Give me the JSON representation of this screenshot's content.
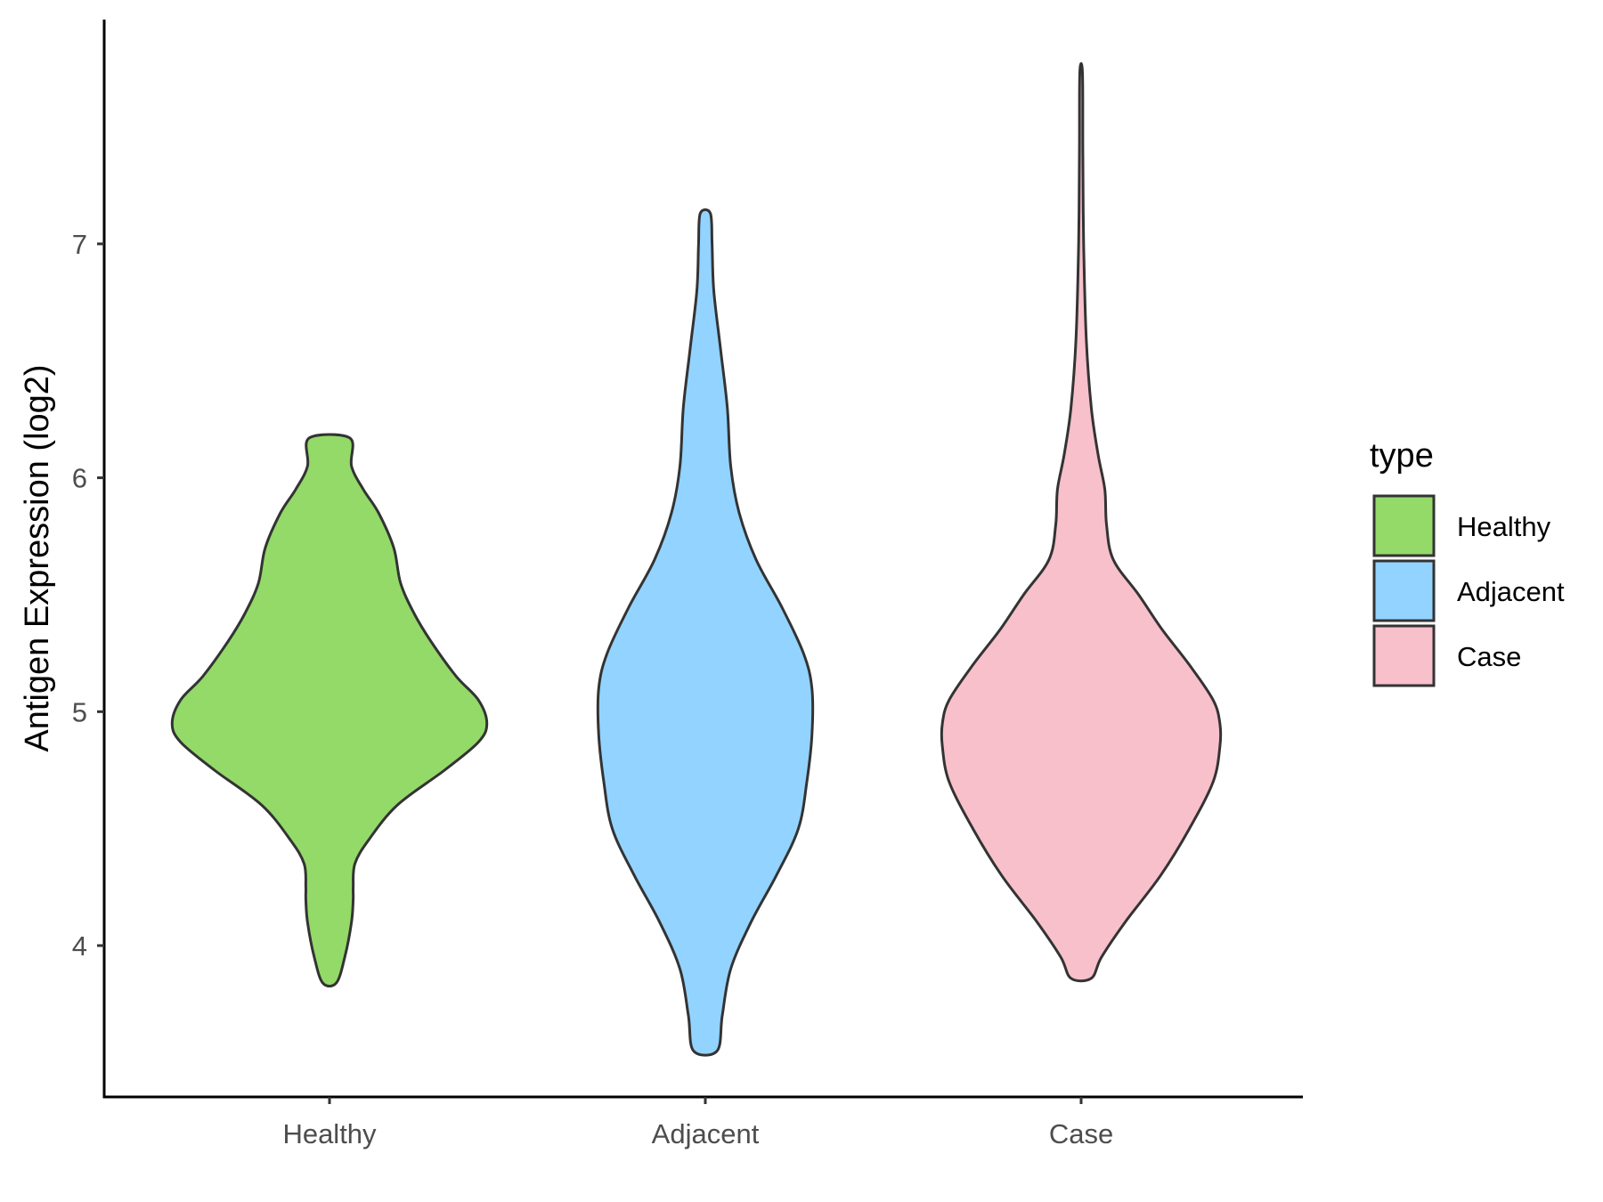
{
  "chart_data": {
    "type": "violin",
    "title": "",
    "xlabel": "",
    "ylabel": "Antigen Expression (log2)",
    "ylim": [
      3.35,
      7.85
    ],
    "yticks": [
      4,
      5,
      6,
      7
    ],
    "categories": [
      "Healthy",
      "Adjacent",
      "Case"
    ],
    "legend": {
      "title": "type",
      "position": "right"
    },
    "grid": false,
    "series": [
      {
        "name": "Healthy",
        "color": "#93DA69",
        "min": 3.84,
        "max": 6.17,
        "profile": [
          [
            3.84,
            0.04
          ],
          [
            3.95,
            0.09
          ],
          [
            4.1,
            0.13
          ],
          [
            4.2,
            0.14
          ],
          [
            4.25,
            0.14
          ],
          [
            4.35,
            0.15
          ],
          [
            4.45,
            0.23
          ],
          [
            4.6,
            0.4
          ],
          [
            4.75,
            0.68
          ],
          [
            4.87,
            0.88
          ],
          [
            4.95,
            0.93
          ],
          [
            5.05,
            0.88
          ],
          [
            5.15,
            0.75
          ],
          [
            5.3,
            0.6
          ],
          [
            5.42,
            0.5
          ],
          [
            5.55,
            0.42
          ],
          [
            5.7,
            0.38
          ],
          [
            5.85,
            0.29
          ],
          [
            5.95,
            0.2
          ],
          [
            6.05,
            0.13
          ],
          [
            6.17,
            0.12
          ]
        ]
      },
      {
        "name": "Adjacent",
        "color": "#93D3FF",
        "min": 3.55,
        "max": 7.13,
        "profile": [
          [
            3.55,
            0.07
          ],
          [
            3.7,
            0.1
          ],
          [
            3.9,
            0.15
          ],
          [
            4.1,
            0.27
          ],
          [
            4.3,
            0.42
          ],
          [
            4.5,
            0.55
          ],
          [
            4.7,
            0.6
          ],
          [
            4.9,
            0.63
          ],
          [
            5.1,
            0.63
          ],
          [
            5.25,
            0.58
          ],
          [
            5.45,
            0.45
          ],
          [
            5.65,
            0.3
          ],
          [
            5.85,
            0.2
          ],
          [
            6.05,
            0.15
          ],
          [
            6.3,
            0.13
          ],
          [
            6.55,
            0.09
          ],
          [
            6.8,
            0.05
          ],
          [
            7.0,
            0.04
          ],
          [
            7.13,
            0.03
          ]
        ]
      },
      {
        "name": "Case",
        "color": "#F7C0CB",
        "min": 3.86,
        "max": 7.73,
        "profile": [
          [
            3.86,
            0.06
          ],
          [
            3.95,
            0.12
          ],
          [
            4.1,
            0.26
          ],
          [
            4.3,
            0.47
          ],
          [
            4.5,
            0.64
          ],
          [
            4.7,
            0.78
          ],
          [
            4.85,
            0.82
          ],
          [
            4.95,
            0.82
          ],
          [
            5.05,
            0.78
          ],
          [
            5.2,
            0.64
          ],
          [
            5.35,
            0.48
          ],
          [
            5.5,
            0.34
          ],
          [
            5.65,
            0.19
          ],
          [
            5.8,
            0.15
          ],
          [
            5.95,
            0.14
          ],
          [
            6.1,
            0.1
          ],
          [
            6.3,
            0.06
          ],
          [
            6.6,
            0.03
          ],
          [
            7.0,
            0.015
          ],
          [
            7.4,
            0.01
          ],
          [
            7.73,
            0.008
          ]
        ]
      }
    ]
  }
}
